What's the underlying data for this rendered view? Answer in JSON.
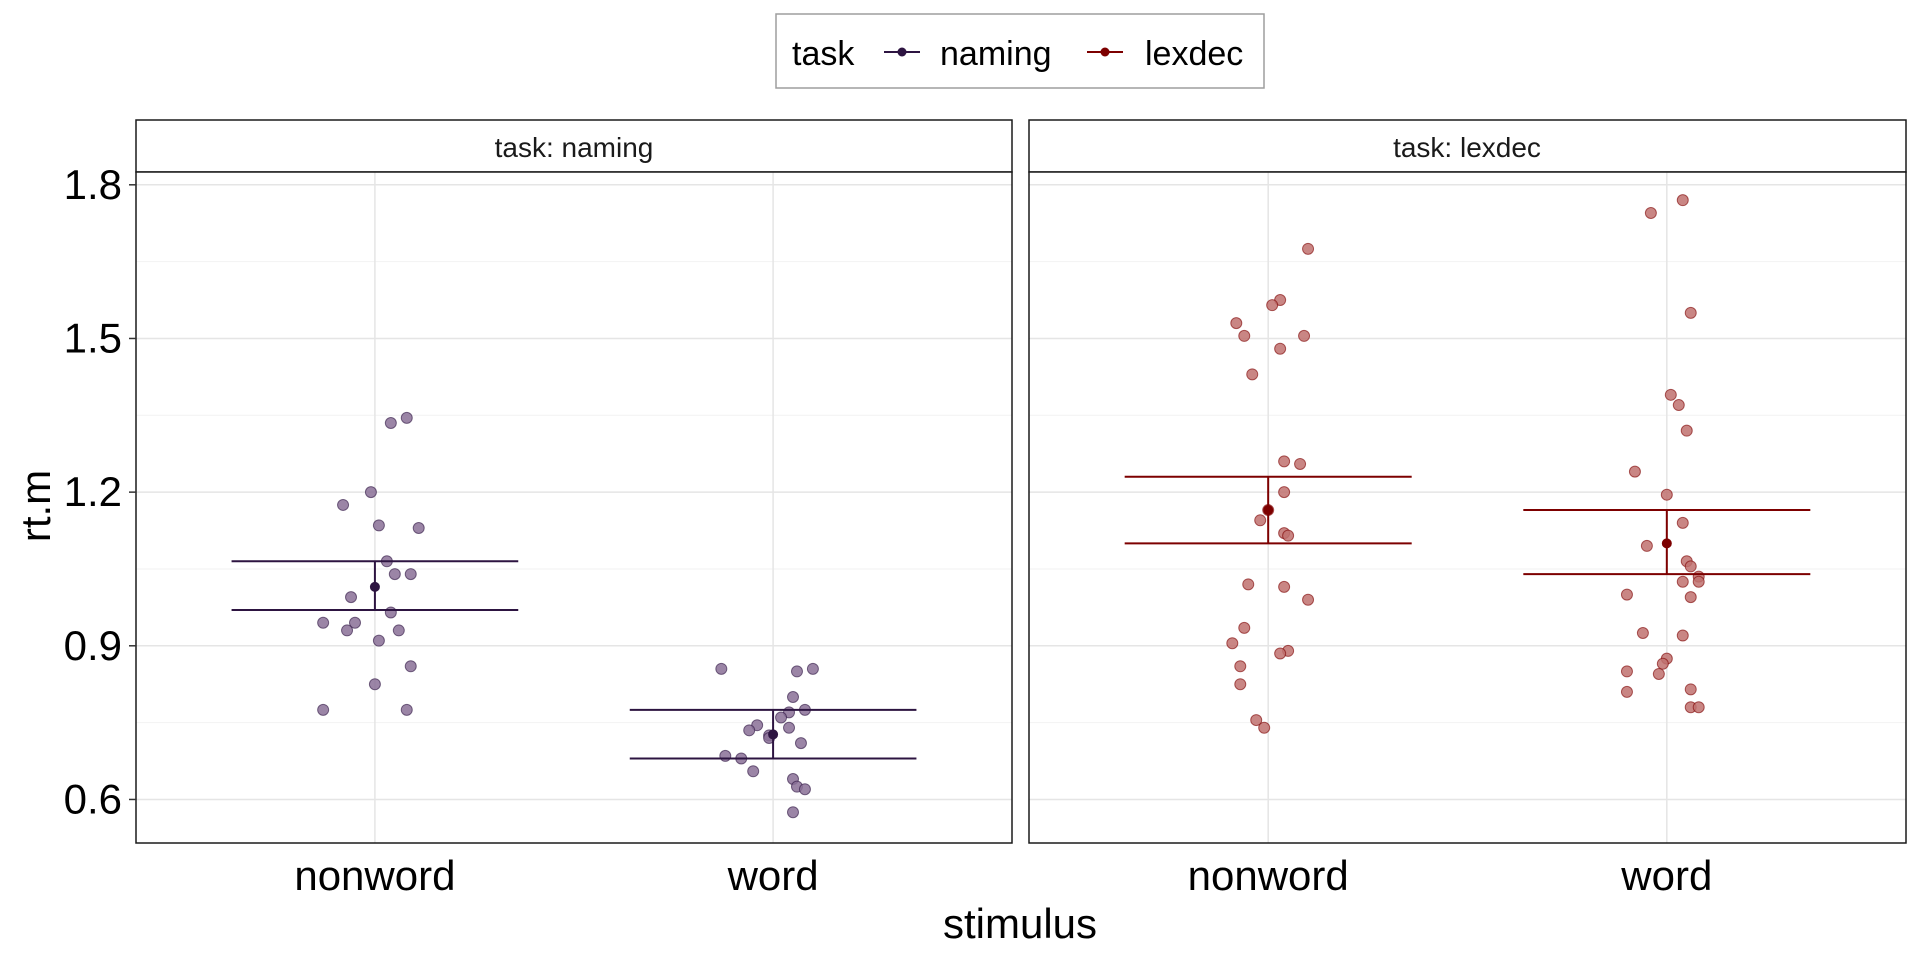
{
  "chart_data": {
    "type": "scatter",
    "xlabel": "stimulus",
    "ylabel": "rt.m",
    "ylim": [
      0.515,
      1.825
    ],
    "yticks": [
      0.6,
      0.9,
      1.2,
      1.5,
      1.8
    ],
    "ytick_labels": [
      "0.6",
      "0.9",
      "1.2",
      "1.5",
      "1.8"
    ],
    "categories": [
      "nonword",
      "word"
    ],
    "grid": true,
    "legend": {
      "title": "task",
      "position": "top",
      "entries": [
        {
          "label": "naming",
          "color": "#2d1441"
        },
        {
          "label": "lexdec",
          "color": "#7d0000"
        }
      ]
    },
    "facets": [
      {
        "strip": "task: naming",
        "task": "naming",
        "color": "#2d1441",
        "point_fill": "#8a7096",
        "groups": [
          {
            "category": "nonword",
            "mean": 1.015,
            "ci": [
              0.97,
              1.065
            ],
            "points": [
              {
                "dx": -0.08,
                "y": 1.175
              },
              {
                "dx": -0.01,
                "y": 1.2
              },
              {
                "dx": 0.04,
                "y": 1.335
              },
              {
                "dx": 0.08,
                "y": 1.345
              },
              {
                "dx": 0.01,
                "y": 1.135
              },
              {
                "dx": 0.11,
                "y": 1.13
              },
              {
                "dx": 0.03,
                "y": 1.065
              },
              {
                "dx": 0.05,
                "y": 1.04
              },
              {
                "dx": 0.09,
                "y": 1.04
              },
              {
                "dx": -0.06,
                "y": 0.995
              },
              {
                "dx": 0.04,
                "y": 0.965
              },
              {
                "dx": -0.13,
                "y": 0.945
              },
              {
                "dx": -0.05,
                "y": 0.945
              },
              {
                "dx": -0.07,
                "y": 0.93
              },
              {
                "dx": 0.06,
                "y": 0.93
              },
              {
                "dx": 0.01,
                "y": 0.91
              },
              {
                "dx": 0.09,
                "y": 0.86
              },
              {
                "dx": 0.0,
                "y": 0.825
              },
              {
                "dx": -0.13,
                "y": 0.775
              },
              {
                "dx": 0.08,
                "y": 0.775
              }
            ]
          },
          {
            "category": "word",
            "mean": 0.727,
            "ci": [
              0.68,
              0.775
            ],
            "points": [
              {
                "dx": -0.13,
                "y": 0.855
              },
              {
                "dx": 0.06,
                "y": 0.85
              },
              {
                "dx": 0.1,
                "y": 0.855
              },
              {
                "dx": 0.05,
                "y": 0.8
              },
              {
                "dx": 0.08,
                "y": 0.775
              },
              {
                "dx": 0.04,
                "y": 0.77
              },
              {
                "dx": 0.02,
                "y": 0.76
              },
              {
                "dx": -0.04,
                "y": 0.745
              },
              {
                "dx": -0.06,
                "y": 0.735
              },
              {
                "dx": 0.04,
                "y": 0.74
              },
              {
                "dx": -0.01,
                "y": 0.725
              },
              {
                "dx": -0.01,
                "y": 0.72
              },
              {
                "dx": 0.07,
                "y": 0.71
              },
              {
                "dx": -0.12,
                "y": 0.685
              },
              {
                "dx": -0.08,
                "y": 0.68
              },
              {
                "dx": -0.05,
                "y": 0.655
              },
              {
                "dx": 0.05,
                "y": 0.64
              },
              {
                "dx": 0.06,
                "y": 0.625
              },
              {
                "dx": 0.08,
                "y": 0.62
              },
              {
                "dx": 0.05,
                "y": 0.575
              }
            ]
          }
        ]
      },
      {
        "strip": "task: lexdec",
        "task": "lexdec",
        "color": "#7d0000",
        "point_fill": "#c0716f",
        "groups": [
          {
            "category": "nonword",
            "mean": 1.165,
            "ci": [
              1.1,
              1.23
            ],
            "points": [
              {
                "dx": 0.1,
                "y": 1.675
              },
              {
                "dx": 0.03,
                "y": 1.575
              },
              {
                "dx": 0.01,
                "y": 1.565
              },
              {
                "dx": -0.08,
                "y": 1.53
              },
              {
                "dx": -0.06,
                "y": 1.505
              },
              {
                "dx": 0.09,
                "y": 1.505
              },
              {
                "dx": 0.03,
                "y": 1.48
              },
              {
                "dx": -0.04,
                "y": 1.43
              },
              {
                "dx": 0.04,
                "y": 1.26
              },
              {
                "dx": 0.08,
                "y": 1.255
              },
              {
                "dx": 0.04,
                "y": 1.2
              },
              {
                "dx": 0.0,
                "y": 1.165
              },
              {
                "dx": -0.02,
                "y": 1.145
              },
              {
                "dx": 0.04,
                "y": 1.12
              },
              {
                "dx": 0.05,
                "y": 1.115
              },
              {
                "dx": -0.05,
                "y": 1.02
              },
              {
                "dx": 0.04,
                "y": 1.015
              },
              {
                "dx": 0.1,
                "y": 0.99
              },
              {
                "dx": -0.06,
                "y": 0.935
              },
              {
                "dx": -0.09,
                "y": 0.905
              },
              {
                "dx": 0.05,
                "y": 0.89
              },
              {
                "dx": 0.03,
                "y": 0.885
              },
              {
                "dx": -0.07,
                "y": 0.86
              },
              {
                "dx": -0.07,
                "y": 0.825
              },
              {
                "dx": -0.03,
                "y": 0.755
              },
              {
                "dx": -0.01,
                "y": 0.74
              }
            ]
          },
          {
            "category": "word",
            "mean": 1.1,
            "ci": [
              1.04,
              1.165
            ],
            "points": [
              {
                "dx": 0.04,
                "y": 1.77
              },
              {
                "dx": -0.04,
                "y": 1.745
              },
              {
                "dx": 0.06,
                "y": 1.55
              },
              {
                "dx": 0.01,
                "y": 1.39
              },
              {
                "dx": 0.03,
                "y": 1.37
              },
              {
                "dx": 0.05,
                "y": 1.32
              },
              {
                "dx": -0.08,
                "y": 1.24
              },
              {
                "dx": 0.0,
                "y": 1.195
              },
              {
                "dx": 0.04,
                "y": 1.14
              },
              {
                "dx": -0.05,
                "y": 1.095
              },
              {
                "dx": 0.05,
                "y": 1.065
              },
              {
                "dx": 0.06,
                "y": 1.055
              },
              {
                "dx": 0.08,
                "y": 1.035
              },
              {
                "dx": 0.04,
                "y": 1.025
              },
              {
                "dx": 0.08,
                "y": 1.025
              },
              {
                "dx": -0.1,
                "y": 1.0
              },
              {
                "dx": 0.06,
                "y": 0.995
              },
              {
                "dx": -0.06,
                "y": 0.925
              },
              {
                "dx": 0.04,
                "y": 0.92
              },
              {
                "dx": 0.0,
                "y": 0.875
              },
              {
                "dx": -0.01,
                "y": 0.865
              },
              {
                "dx": -0.1,
                "y": 0.85
              },
              {
                "dx": -0.02,
                "y": 0.845
              },
              {
                "dx": 0.06,
                "y": 0.815
              },
              {
                "dx": -0.1,
                "y": 0.81
              },
              {
                "dx": 0.06,
                "y": 0.78
              },
              {
                "dx": 0.08,
                "y": 0.78
              }
            ]
          }
        ]
      }
    ]
  }
}
